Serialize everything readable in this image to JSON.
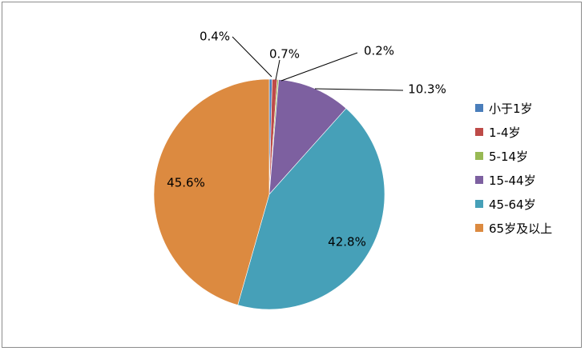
{
  "chart_data": {
    "type": "pie",
    "categories": [
      "小于1岁",
      "1-4岁",
      "5-14岁",
      "15-44岁",
      "45-64岁",
      "65岁及以上"
    ],
    "values": [
      0.4,
      0.7,
      0.2,
      10.3,
      42.8,
      45.6
    ],
    "labels": [
      "0.4%",
      "0.7%",
      "0.2%",
      "10.3%",
      "42.8%",
      "45.6%"
    ],
    "colors": [
      "#4a7ebb",
      "#be4b48",
      "#98b954",
      "#7d60a0",
      "#46a0b8",
      "#dc8a40"
    ],
    "legend_position": "right"
  }
}
